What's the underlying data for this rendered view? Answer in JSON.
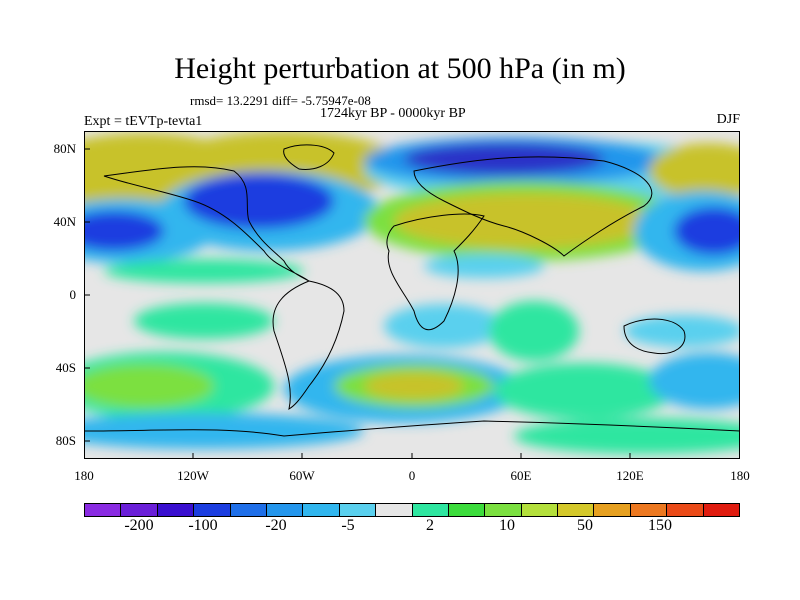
{
  "title": "Height perturbation at 500 hPa (in m)",
  "stats": "rmsd= 13.2291 diff= -5.75947e-08",
  "experiment": "Expt = tEVTp-tevta1",
  "period": "1724kyr BP - 0000kyr BP",
  "season": "DJF",
  "lat_labels": [
    "80N",
    "40N",
    "0",
    "40S",
    "80S"
  ],
  "lon_labels": [
    "180",
    "120W",
    "60W",
    "0",
    "60E",
    "120E",
    "180"
  ],
  "colorbar": {
    "colors": [
      "#8a2be2",
      "#6a1fd8",
      "#3a10d0",
      "#1c3ee0",
      "#1f6fe8",
      "#2496ec",
      "#31b6ee",
      "#5ad0ee",
      "#e6e6e6",
      "#2ee6a0",
      "#3cdc3c",
      "#7be040",
      "#b4e03c",
      "#d4c82a",
      "#e6a020",
      "#ec7820",
      "#ea4a18",
      "#e01c10"
    ],
    "labels": [
      "-200",
      "-100",
      "-20",
      "-5",
      "2",
      "10",
      "50",
      "150"
    ]
  },
  "colors": {
    "neutral": "#e6e6e6",
    "deep_neg": "#2a32c8",
    "neg": "#1f6fe8",
    "mid_neg": "#2496ec",
    "light_neg": "#5ad0ee",
    "light_pos": "#2ee6a0",
    "pos": "#3cdc3c",
    "mid_pos": "#b4e03c",
    "strong_pos": "#d4c82a"
  }
}
